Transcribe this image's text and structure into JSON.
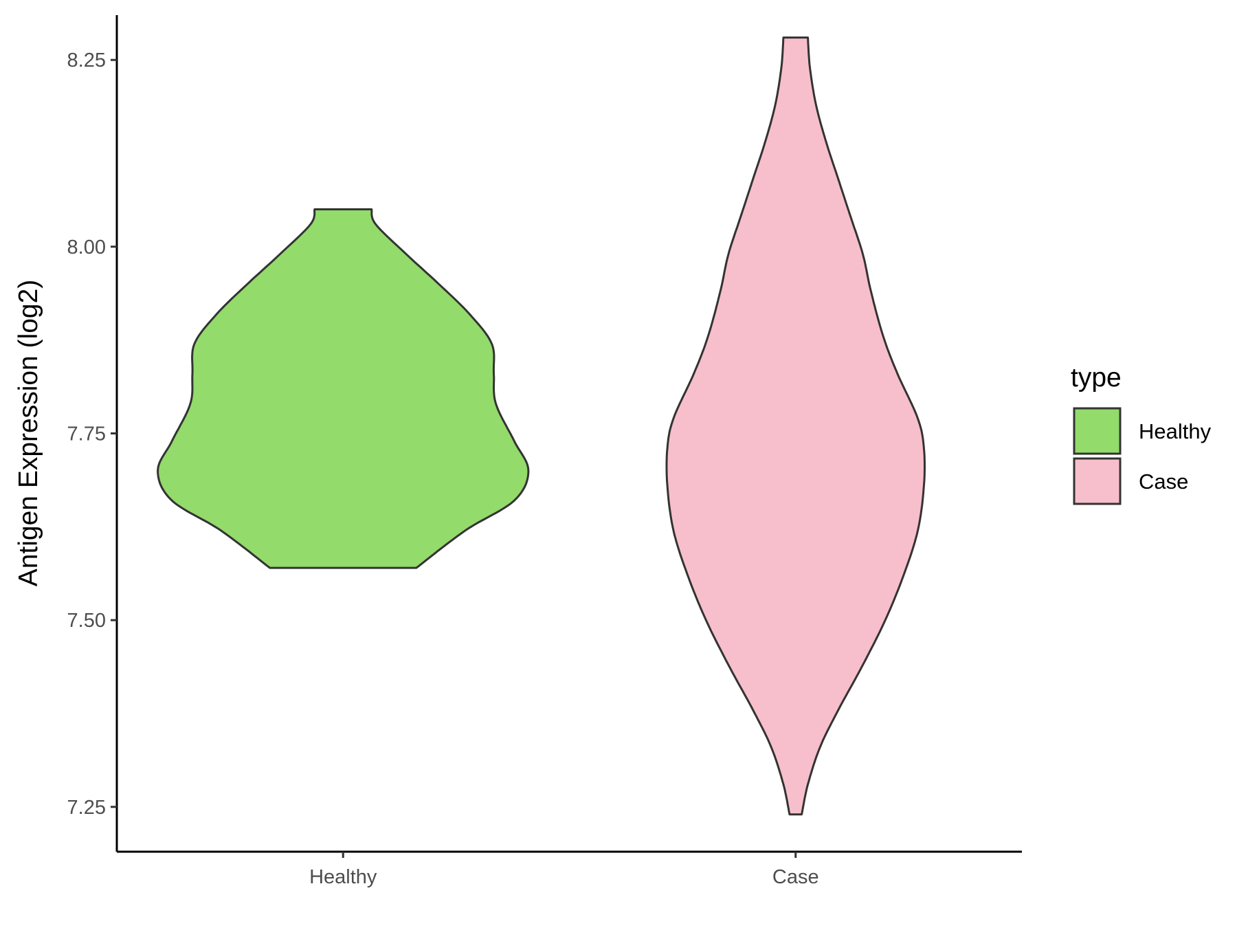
{
  "chart_data": {
    "type": "violin",
    "ylabel": "Antigen Expression (log2)",
    "xlabel": "",
    "ylim": [
      7.19,
      8.31
    ],
    "yticks": [
      "7.25",
      "7.50",
      "7.75",
      "8.00",
      "8.25"
    ],
    "categories": [
      "Healthy",
      "Case"
    ],
    "legend": {
      "title": "type",
      "position": "right",
      "entries": [
        "Healthy",
        "Case"
      ]
    },
    "grid": false,
    "series": [
      {
        "name": "Healthy",
        "color": "#93DB6B",
        "y_min": 7.57,
        "y_max": 8.05,
        "density_profile": [
          [
            7.57,
            0.36
          ],
          [
            7.62,
            0.6
          ],
          [
            7.66,
            0.84
          ],
          [
            7.7,
            0.91
          ],
          [
            7.74,
            0.84
          ],
          [
            7.79,
            0.75
          ],
          [
            7.83,
            0.74
          ],
          [
            7.87,
            0.73
          ],
          [
            7.91,
            0.62
          ],
          [
            7.95,
            0.47
          ],
          [
            7.99,
            0.31
          ],
          [
            8.03,
            0.16
          ],
          [
            8.05,
            0.14
          ]
        ]
      },
      {
        "name": "Case",
        "color": "#F7BFCB",
        "y_min": 7.24,
        "y_max": 8.28,
        "density_profile": [
          [
            7.24,
            0.03
          ],
          [
            7.28,
            0.06
          ],
          [
            7.33,
            0.12
          ],
          [
            7.38,
            0.21
          ],
          [
            7.44,
            0.33
          ],
          [
            7.5,
            0.44
          ],
          [
            7.56,
            0.53
          ],
          [
            7.62,
            0.6
          ],
          [
            7.68,
            0.63
          ],
          [
            7.73,
            0.63
          ],
          [
            7.77,
            0.6
          ],
          [
            7.83,
            0.5
          ],
          [
            7.88,
            0.43
          ],
          [
            7.94,
            0.37
          ],
          [
            7.99,
            0.33
          ],
          [
            8.04,
            0.27
          ],
          [
            8.09,
            0.21
          ],
          [
            8.14,
            0.15
          ],
          [
            8.19,
            0.1
          ],
          [
            8.24,
            0.07
          ],
          [
            8.28,
            0.06
          ]
        ]
      }
    ]
  }
}
